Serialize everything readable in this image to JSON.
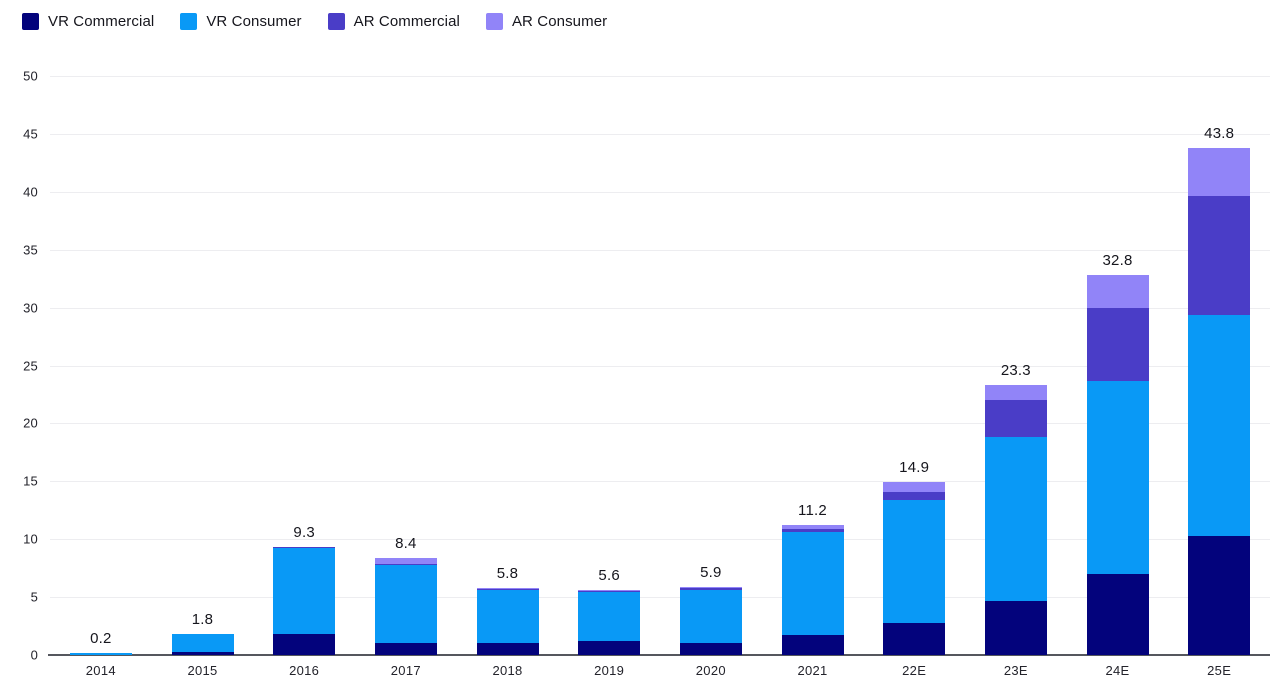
{
  "legend": {
    "items": [
      {
        "label": "VR Commercial",
        "color": "#03037c"
      },
      {
        "label": "VR Consumer",
        "color": "#0999f6"
      },
      {
        "label": "AR Commercial",
        "color": "#4a3dc7"
      },
      {
        "label": "AR Consumer",
        "color": "#9184f8"
      }
    ]
  },
  "chart_data": {
    "type": "bar",
    "stacked": true,
    "title": "",
    "xlabel": "",
    "ylabel": "",
    "categories": [
      "2014",
      "2015",
      "2016",
      "2017",
      "2018",
      "2019",
      "2020",
      "2021",
      "22E",
      "23E",
      "24E",
      "25E"
    ],
    "series": [
      {
        "name": "VR Commercial",
        "color": "#03037c",
        "values": [
          0,
          0.3,
          1.8,
          1.0,
          1.0,
          1.2,
          1.0,
          1.7,
          2.8,
          4.7,
          7.0,
          10.3
        ]
      },
      {
        "name": "VR Consumer",
        "color": "#0999f6",
        "values": [
          0.2,
          1.5,
          7.4,
          6.8,
          4.6,
          4.2,
          4.6,
          8.9,
          10.6,
          14.1,
          16.7,
          19.1
        ]
      },
      {
        "name": "AR Commercial",
        "color": "#4a3dc7",
        "values": [
          0,
          0,
          0.1,
          0.1,
          0.1,
          0.1,
          0.2,
          0.3,
          0.7,
          3.2,
          6.3,
          10.2
        ]
      },
      {
        "name": "AR Consumer",
        "color": "#9184f8",
        "values": [
          0,
          0,
          0,
          0.5,
          0.1,
          0.1,
          0.1,
          0.3,
          0.8,
          1.3,
          2.8,
          4.2
        ]
      }
    ],
    "totals": [
      "0.2",
      "1.8",
      "9.3",
      "8.4",
      "5.8",
      "5.6",
      "5.9",
      "11.2",
      "14.9",
      "23.3",
      "32.8",
      "43.8"
    ],
    "ylim": [
      0,
      50
    ],
    "ytick_step": 5,
    "ytick_labels": [
      "0",
      "5",
      "10",
      "15",
      "20",
      "25",
      "30",
      "35",
      "40",
      "45",
      "50"
    ],
    "grid": true,
    "legend_position": "top-left"
  }
}
